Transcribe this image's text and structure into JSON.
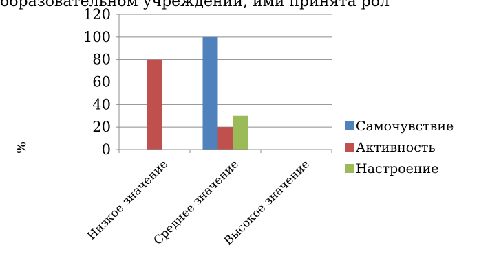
{
  "page_text": {
    "cropped_line": "образовательном   учреждении,   ими   принята   рол"
  },
  "colors": {
    "series_1": "#4f81bd",
    "series_2": "#c0504d",
    "series_3": "#9bbb59",
    "gridline": "#8c8c8c"
  },
  "chart_data": {
    "type": "bar",
    "title": "",
    "xlabel": "",
    "ylabel": "%",
    "categories": [
      "Низкое значение",
      "Среднее значение",
      "Высокое значение"
    ],
    "ylim": [
      0,
      120
    ],
    "yticks": [
      0,
      20,
      40,
      60,
      80,
      100,
      120
    ],
    "grid": true,
    "legend_position": "right",
    "series": [
      {
        "name": "Самочувствие",
        "values": [
          0,
          100,
          0
        ]
      },
      {
        "name": "Активность",
        "values": [
          80,
          20,
          0
        ]
      },
      {
        "name": "Настроение",
        "values": [
          0,
          30,
          0
        ]
      }
    ]
  }
}
